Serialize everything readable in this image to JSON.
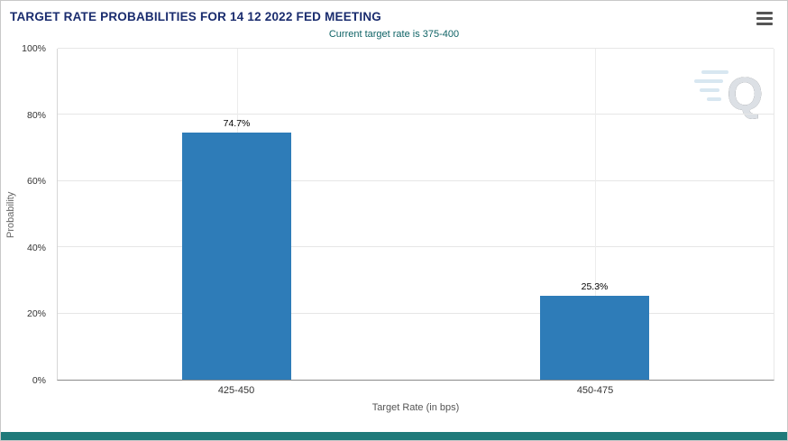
{
  "colors": {
    "title": "#1a2c6e",
    "subtitle": "#0f6366",
    "bar": "#2e7cb8",
    "accent": "#1f7a7a"
  },
  "icons": {
    "menu": "hamburger-icon",
    "watermark": "quikstrike-q-logo"
  },
  "chart_data": {
    "type": "bar",
    "title": "TARGET RATE PROBABILITIES FOR 14 12 2022 FED MEETING",
    "subtitle": "Current target rate is 375-400",
    "categories": [
      "425-450",
      "450-475"
    ],
    "values": [
      74.7,
      25.3
    ],
    "data_labels": [
      "74.7%",
      "25.3%"
    ],
    "xlabel": "Target Rate (in bps)",
    "ylabel": "Probability",
    "ylim": [
      0,
      100
    ],
    "yticks": [
      0,
      20,
      40,
      60,
      80,
      100
    ],
    "ytick_labels": [
      "0%",
      "20%",
      "40%",
      "60%",
      "80%",
      "100%"
    ],
    "grid": true,
    "legend": "none",
    "bar_width_pct": 15.3
  }
}
